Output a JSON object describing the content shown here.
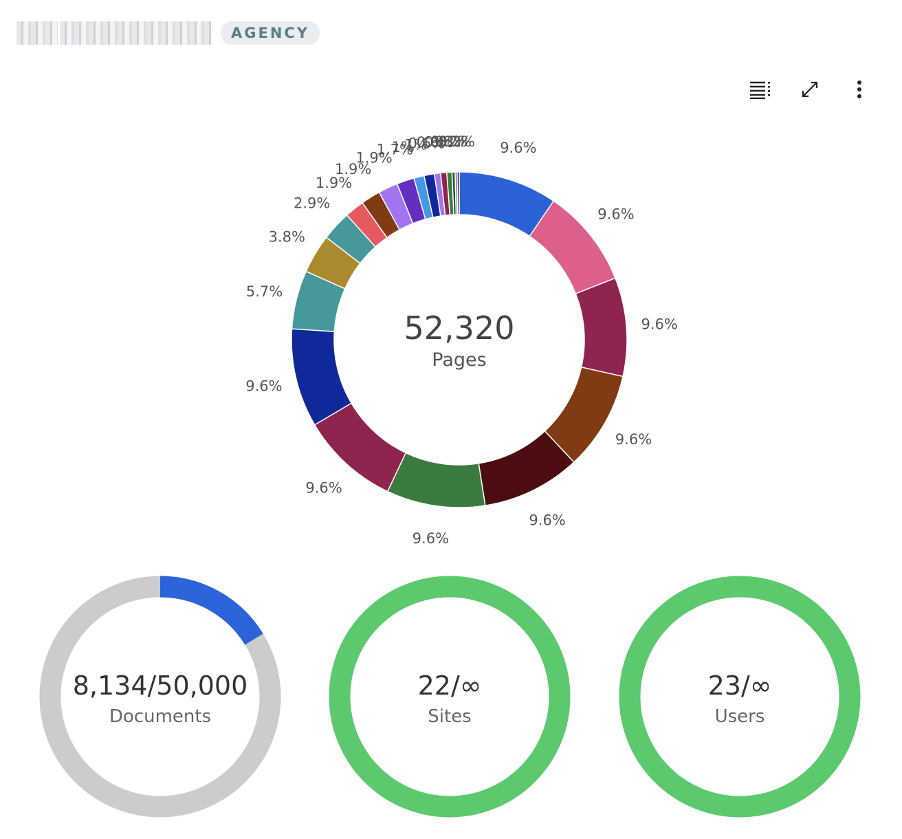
{
  "header": {
    "badge": "AGENCY"
  },
  "toolbar": {
    "icons": [
      "list-icon",
      "expand-icon",
      "more-vertical-icon"
    ]
  },
  "chart_data": [
    {
      "type": "pie",
      "donut": true,
      "center_value": "52,320",
      "center_label": "Pages",
      "slices": [
        {
          "value": 9.6,
          "label": "9.6%",
          "color": "#2a62d6"
        },
        {
          "value": 9.6,
          "label": "9.6%",
          "color": "#dc5f8c"
        },
        {
          "value": 9.6,
          "label": "9.6%",
          "color": "#8e2450"
        },
        {
          "value": 9.6,
          "label": "9.6%",
          "color": "#813b14"
        },
        {
          "value": 9.6,
          "label": "9.6%",
          "color": "#4b0d10"
        },
        {
          "value": 9.6,
          "label": "9.6%",
          "color": "#3c7b3f"
        },
        {
          "value": 9.6,
          "label": "9.6%",
          "color": "#8e2450"
        },
        {
          "value": 9.6,
          "label": "9.6%",
          "color": "#10299a"
        },
        {
          "value": 5.7,
          "label": "5.7%",
          "color": "#469998"
        },
        {
          "value": 3.8,
          "label": "3.8%",
          "color": "#aa8a2c"
        },
        {
          "value": 2.9,
          "label": "2.9%",
          "color": "#469998"
        },
        {
          "value": 1.9,
          "label": "1.9%",
          "color": "#e65a5f"
        },
        {
          "value": 1.9,
          "label": "1.9%",
          "color": "#813b14"
        },
        {
          "value": 1.9,
          "label": "1.9%",
          "color": "#a175f0"
        },
        {
          "value": 1.7,
          "label": "1.7%",
          "color": "#642ec0"
        },
        {
          "value": 1.0,
          "label": "1%",
          "color": "#4797e6"
        },
        {
          "value": 1.0,
          "label": "1%",
          "color": "#10299a"
        },
        {
          "value": 0.6,
          "label": "0.6%",
          "color": "#a175f0"
        },
        {
          "value": 0.6,
          "label": "0.6%",
          "color": "#8e2450"
        },
        {
          "value": 0.5,
          "label": "0.5%",
          "color": "#3c7b3f"
        },
        {
          "value": 0.3,
          "label": "0.3%",
          "color": "#2d4f3e"
        },
        {
          "value": 0.2,
          "label": "0.2%",
          "color": "#2a62d6"
        },
        {
          "value": 0.2,
          "label": "0.2%",
          "color": "#4b0d10"
        }
      ]
    },
    {
      "type": "pie",
      "donut": true,
      "value": 8134,
      "max": 50000,
      "center_value": "8,134/50,000",
      "center_label": "Documents",
      "fill_color": "#2b63d8",
      "track_color": "#cccccc"
    },
    {
      "type": "pie",
      "donut": true,
      "value": 22,
      "max": null,
      "center_value": "22/∞",
      "center_label": "Sites",
      "fill_color": "#5cc96e"
    },
    {
      "type": "pie",
      "donut": true,
      "value": 23,
      "max": null,
      "center_value": "23/∞",
      "center_label": "Users",
      "fill_color": "#5cc96e"
    }
  ]
}
